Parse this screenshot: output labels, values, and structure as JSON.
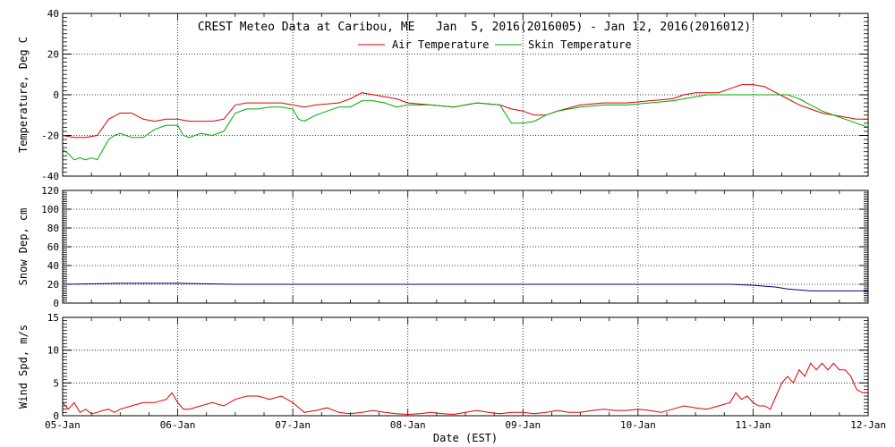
{
  "chart_data": {
    "type": "line",
    "title": "CREST Meteo Data at Caribou, ME   Jan  5, 2016(2016005) - Jan 12, 2016(2016012)",
    "xlabel": "Date (EST)",
    "x_tick_labels": [
      "05-Jan",
      "06-Jan",
      "07-Jan",
      "08-Jan",
      "09-Jan",
      "10-Jan",
      "11-Jan",
      "12-Jan"
    ],
    "xlim_days": [
      0,
      7
    ],
    "grid": true,
    "panels": [
      {
        "ylabel": "Temperature, Deg C",
        "ylim": [
          -40,
          40
        ],
        "yticks": [
          -40,
          -20,
          0,
          20,
          40
        ],
        "legend_placement": "top-center",
        "series": [
          {
            "name": "Air Temperature",
            "color": "#dd0000",
            "x": [
              0,
              0.1,
              0.2,
              0.3,
              0.35,
              0.4,
              0.5,
              0.6,
              0.7,
              0.8,
              0.9,
              1.0,
              1.1,
              1.2,
              1.3,
              1.4,
              1.5,
              1.6,
              1.7,
              1.8,
              1.9,
              2.0,
              2.1,
              2.2,
              2.4,
              2.5,
              2.6,
              2.7,
              2.8,
              2.9,
              3.0,
              3.2,
              3.4,
              3.6,
              3.8,
              3.9,
              4.0,
              4.1,
              4.2,
              4.3,
              4.5,
              4.7,
              4.9,
              5.1,
              5.3,
              5.4,
              5.5,
              5.6,
              5.7,
              5.8,
              5.9,
              6.0,
              6.1,
              6.2,
              6.3,
              6.4,
              6.5,
              6.6,
              6.7,
              6.8,
              6.9,
              7.0
            ],
            "values": [
              -20,
              -21,
              -21,
              -20,
              -16,
              -12,
              -9,
              -9,
              -12,
              -13,
              -12,
              -12,
              -13,
              -13,
              -13,
              -12,
              -5,
              -4,
              -4,
              -4,
              -4,
              -5,
              -6,
              -5,
              -4,
              -2,
              1,
              0,
              -1,
              -2,
              -4,
              -5,
              -6,
              -4,
              -5,
              -7,
              -8,
              -10,
              -10,
              -8,
              -5,
              -4,
              -4,
              -3,
              -2,
              0,
              1,
              1,
              1,
              3,
              5,
              5,
              4,
              1,
              -2,
              -5,
              -7,
              -9,
              -10,
              -11,
              -12,
              -12
            ]
          },
          {
            "name": "Skin Temperature",
            "color": "#00aa00",
            "x": [
              0,
              0.05,
              0.1,
              0.15,
              0.2,
              0.25,
              0.3,
              0.35,
              0.4,
              0.45,
              0.5,
              0.6,
              0.7,
              0.8,
              0.9,
              1.0,
              1.05,
              1.1,
              1.2,
              1.3,
              1.4,
              1.5,
              1.6,
              1.7,
              1.8,
              1.9,
              2.0,
              2.05,
              2.1,
              2.2,
              2.3,
              2.4,
              2.5,
              2.6,
              2.7,
              2.8,
              2.9,
              3.0,
              3.2,
              3.4,
              3.6,
              3.8,
              3.9,
              4.0,
              4.1,
              4.2,
              4.3,
              4.5,
              4.7,
              4.9,
              5.1,
              5.3,
              5.4,
              5.5,
              5.6,
              5.7,
              5.8,
              5.9,
              6.0,
              6.1,
              6.2,
              6.3,
              6.4,
              6.5,
              6.6,
              6.7,
              6.8,
              6.9,
              7.0
            ],
            "values": [
              -27,
              -29,
              -32,
              -31,
              -32,
              -31,
              -32,
              -27,
              -22,
              -20,
              -19,
              -21,
              -21,
              -17,
              -15,
              -15,
              -20,
              -21,
              -19,
              -20,
              -18,
              -9,
              -7,
              -7,
              -6,
              -6,
              -7,
              -12,
              -13,
              -10,
              -8,
              -6,
              -6,
              -3,
              -3,
              -4,
              -6,
              -5,
              -5,
              -6,
              -4,
              -5,
              -14,
              -14,
              -13,
              -10,
              -8,
              -6,
              -5,
              -5,
              -4,
              -3,
              -2,
              -1,
              0,
              0,
              0,
              0,
              0,
              0,
              0,
              0,
              -2,
              -5,
              -8,
              -10,
              -12,
              -14,
              -16
            ]
          }
        ]
      },
      {
        "ylabel": "Snow Dep, cm",
        "ylim": [
          0,
          120
        ],
        "yticks": [
          0,
          20,
          40,
          60,
          80,
          100,
          120
        ],
        "series": [
          {
            "color": "#000080",
            "x": [
              0,
              0.5,
              1.0,
              1.5,
              2.0,
              2.5,
              3.0,
              3.5,
              4.0,
              4.5,
              5.0,
              5.5,
              5.8,
              6.0,
              6.1,
              6.2,
              6.3,
              6.4,
              6.5,
              6.6,
              6.7,
              6.8,
              6.9,
              7.0
            ],
            "values": [
              20,
              21,
              21,
              20,
              20,
              20,
              20,
              20,
              20,
              20,
              20,
              20,
              20,
              19,
              18,
              17,
              15,
              14,
              13,
              13,
              13,
              13,
              13,
              13
            ]
          }
        ]
      },
      {
        "ylabel": "Wind Spd, m/s",
        "ylim": [
          0,
          15
        ],
        "yticks": [
          0,
          5,
          10,
          15
        ],
        "series": [
          {
            "color": "#dd0000",
            "x": [
              0,
              0.05,
              0.1,
              0.15,
              0.2,
              0.25,
              0.3,
              0.35,
              0.4,
              0.45,
              0.5,
              0.6,
              0.7,
              0.8,
              0.9,
              0.95,
              1.0,
              1.05,
              1.1,
              1.2,
              1.3,
              1.4,
              1.5,
              1.6,
              1.7,
              1.8,
              1.9,
              2.0,
              2.1,
              2.2,
              2.3,
              2.4,
              2.5,
              2.6,
              2.7,
              2.8,
              2.9,
              3.0,
              3.1,
              3.2,
              3.3,
              3.4,
              3.5,
              3.6,
              3.7,
              3.8,
              3.9,
              4.0,
              4.1,
              4.2,
              4.3,
              4.4,
              4.5,
              4.6,
              4.7,
              4.8,
              4.9,
              5.0,
              5.1,
              5.2,
              5.3,
              5.4,
              5.5,
              5.6,
              5.7,
              5.8,
              5.85,
              5.9,
              5.95,
              6.0,
              6.05,
              6.1,
              6.15,
              6.2,
              6.25,
              6.3,
              6.35,
              6.4,
              6.45,
              6.5,
              6.55,
              6.6,
              6.65,
              6.7,
              6.75,
              6.8,
              6.85,
              6.9,
              6.95,
              7.0
            ],
            "values": [
              2,
              1,
              2,
              0.5,
              1,
              0.3,
              0.5,
              0.8,
              1,
              0.5,
              1,
              1.5,
              2,
              2,
              2.5,
              3.5,
              2,
              1,
              1,
              1.5,
              2,
              1.5,
              2.5,
              3,
              3,
              2.5,
              3,
              2,
              0.5,
              0.8,
              1.2,
              0.5,
              0.3,
              0.5,
              0.8,
              0.5,
              0.3,
              0.2,
              0.3,
              0.5,
              0.3,
              0.2,
              0.5,
              0.8,
              0.5,
              0.3,
              0.5,
              0.5,
              0.3,
              0.5,
              0.8,
              0.5,
              0.5,
              0.8,
              1,
              0.8,
              0.8,
              1,
              0.8,
              0.5,
              1,
              1.5,
              1.2,
              1,
              1.5,
              2,
              3.5,
              2.5,
              3,
              2,
              1.5,
              1.5,
              1,
              3,
              5,
              6,
              5,
              7,
              6,
              8,
              7,
              8,
              7,
              8,
              7,
              7,
              6,
              4,
              3.5,
              3.5
            ]
          }
        ]
      }
    ]
  }
}
